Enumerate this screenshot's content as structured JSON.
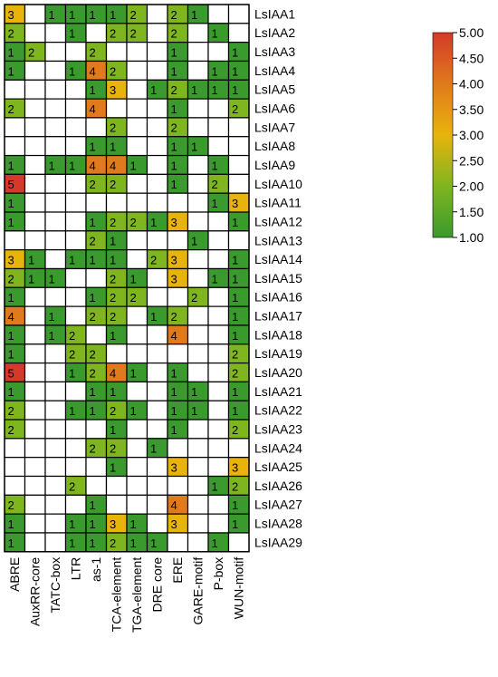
{
  "chart_data": {
    "type": "heatmap",
    "title": "",
    "columns": [
      "ABRE",
      "AuxRR-core",
      "TATC-box",
      "LTR",
      "as-1",
      "TCA-element",
      "TGA-element",
      "DRE core",
      "ERE",
      "GARE-motif",
      "P-box",
      "WUN-motif"
    ],
    "rows": [
      "LsIAA1",
      "LsIAA2",
      "LsIAA3",
      "LsIAA4",
      "LsIAA5",
      "LsIAA6",
      "LsIAA7",
      "LsIAA8",
      "LsIAA9",
      "LsIAA10",
      "LsIAA11",
      "LsIAA12",
      "LsIAA13",
      "LsIAA14",
      "LsIAA15",
      "LsIAA16",
      "LsIAA17",
      "LsIAA18",
      "LsIAA19",
      "LsIAA20",
      "LsIAA21",
      "LsIAA22",
      "LsIAA23",
      "LsIAA24",
      "LsIAA25",
      "LsIAA26",
      "LsIAA27",
      "LsIAA28",
      "LsIAA29"
    ],
    "values": [
      [
        3,
        null,
        1,
        1,
        1,
        1,
        2,
        null,
        2,
        1,
        null,
        null
      ],
      [
        2,
        null,
        null,
        1,
        null,
        2,
        2,
        null,
        2,
        null,
        1,
        null
      ],
      [
        1,
        2,
        null,
        null,
        2,
        null,
        null,
        null,
        1,
        null,
        null,
        1
      ],
      [
        1,
        null,
        null,
        1,
        4,
        2,
        null,
        null,
        1,
        null,
        1,
        1
      ],
      [
        null,
        null,
        null,
        null,
        1,
        3,
        null,
        1,
        2,
        1,
        1,
        1
      ],
      [
        2,
        null,
        null,
        null,
        4,
        null,
        null,
        null,
        1,
        null,
        null,
        2
      ],
      [
        null,
        null,
        null,
        null,
        null,
        2,
        null,
        null,
        2,
        null,
        null,
        null
      ],
      [
        null,
        null,
        null,
        null,
        1,
        1,
        null,
        null,
        1,
        1,
        null,
        null
      ],
      [
        1,
        null,
        1,
        1,
        4,
        4,
        1,
        null,
        1,
        null,
        1,
        null
      ],
      [
        5,
        null,
        null,
        null,
        2,
        2,
        null,
        null,
        1,
        null,
        2,
        null
      ],
      [
        1,
        null,
        null,
        null,
        null,
        null,
        null,
        null,
        null,
        null,
        1,
        3
      ],
      [
        1,
        null,
        null,
        null,
        1,
        2,
        2,
        1,
        3,
        null,
        null,
        1
      ],
      [
        null,
        null,
        null,
        null,
        2,
        1,
        null,
        null,
        null,
        1,
        null,
        null
      ],
      [
        3,
        1,
        null,
        1,
        1,
        1,
        null,
        2,
        3,
        null,
        null,
        1
      ],
      [
        2,
        1,
        1,
        null,
        null,
        2,
        1,
        null,
        3,
        null,
        1,
        1
      ],
      [
        1,
        null,
        null,
        null,
        1,
        2,
        2,
        null,
        null,
        2,
        null,
        1
      ],
      [
        4,
        null,
        1,
        null,
        2,
        2,
        null,
        1,
        2,
        null,
        null,
        1
      ],
      [
        1,
        null,
        1,
        2,
        null,
        1,
        null,
        null,
        4,
        null,
        null,
        1
      ],
      [
        1,
        null,
        null,
        2,
        2,
        null,
        null,
        null,
        null,
        null,
        null,
        2
      ],
      [
        5,
        null,
        null,
        1,
        2,
        4,
        1,
        null,
        1,
        null,
        null,
        2
      ],
      [
        1,
        null,
        null,
        null,
        1,
        1,
        null,
        null,
        1,
        1,
        null,
        1
      ],
      [
        2,
        null,
        null,
        1,
        1,
        2,
        1,
        null,
        1,
        1,
        null,
        1
      ],
      [
        2,
        null,
        null,
        null,
        null,
        1,
        null,
        null,
        1,
        null,
        null,
        2
      ],
      [
        null,
        null,
        null,
        null,
        2,
        2,
        null,
        1,
        null,
        null,
        null,
        null
      ],
      [
        null,
        null,
        null,
        null,
        null,
        1,
        null,
        null,
        3,
        null,
        null,
        3
      ],
      [
        null,
        null,
        null,
        2,
        null,
        null,
        null,
        null,
        null,
        null,
        1,
        2
      ],
      [
        2,
        null,
        null,
        null,
        1,
        null,
        null,
        null,
        4,
        null,
        null,
        1
      ],
      [
        1,
        null,
        null,
        1,
        1,
        3,
        1,
        null,
        3,
        null,
        null,
        1
      ],
      [
        1,
        null,
        null,
        1,
        1,
        2,
        1,
        1,
        null,
        null,
        1,
        null
      ]
    ],
    "colorbar": {
      "ticks": [
        "1.00",
        "1.50",
        "2.00",
        "2.50",
        "3.00",
        "3.50",
        "4.00",
        "4.50",
        "5.00"
      ],
      "min": 1,
      "max": 5
    },
    "colors": {
      "low": "#3a9a2e",
      "mid": "#e8b40c",
      "high": "#d43a2a",
      "empty": "#ffffff",
      "grid": "#000000"
    }
  }
}
